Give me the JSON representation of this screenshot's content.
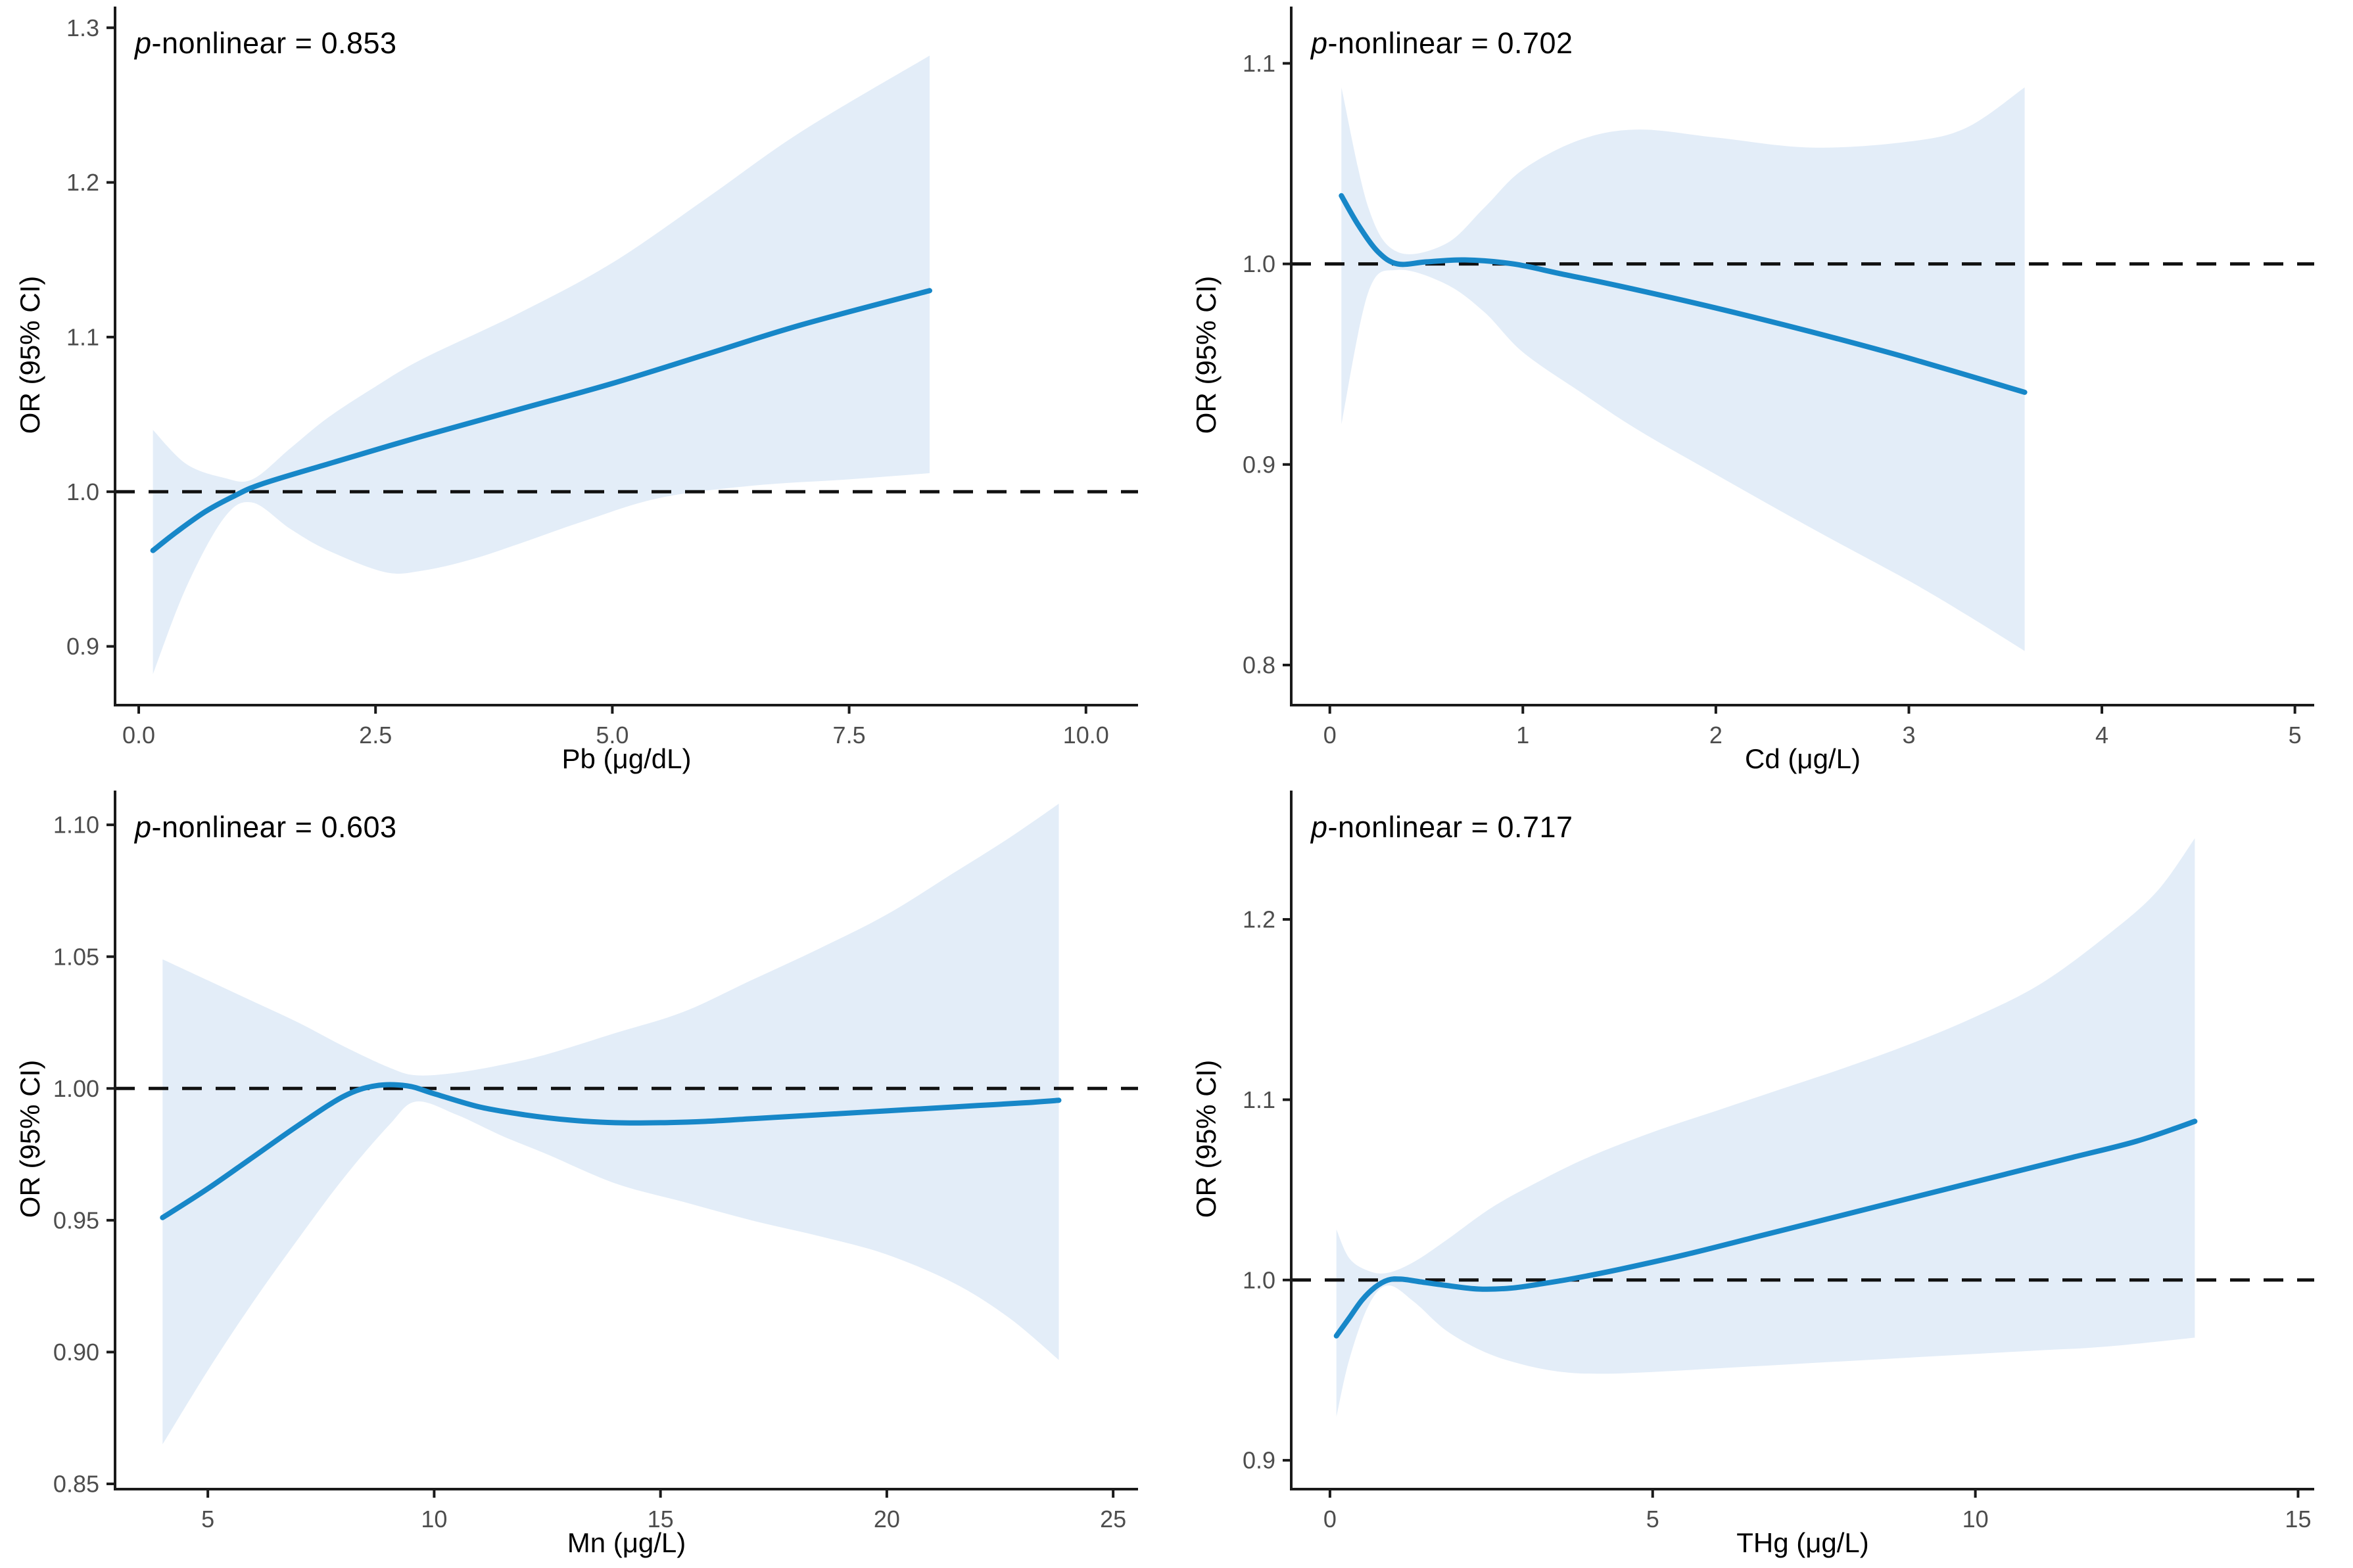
{
  "figure": {
    "background": "#ffffff",
    "colors": {
      "curve": "#1787c8",
      "ci_band": "#e3edf8",
      "ref_line": "#111111",
      "axis": "#1a1a1a",
      "tick_text": "#4d4d4d"
    }
  },
  "chart_data": [
    {
      "id": "pb",
      "type": "line",
      "annotation": {
        "italic": "p",
        "rest": "-nonlinear = 0.853"
      },
      "xlabel": "Pb (μg/dL)",
      "ylabel": "OR (95% CI)",
      "legend": "none",
      "grid": "off",
      "xlim": [
        -0.25,
        10.55
      ],
      "ylim": [
        0.862,
        1.312
      ],
      "ref_y": 1.0,
      "x_tick_values": [
        0,
        2.5,
        5,
        7.5,
        10
      ],
      "x_tick_labels": [
        "0.0",
        "2.5",
        "5.0",
        "7.5",
        "10.0"
      ],
      "y_tick_values": [
        0.9,
        1.0,
        1.1,
        1.2,
        1.3
      ],
      "y_tick_labels": [
        "0.9",
        "1.0",
        "1.1",
        "1.2",
        "1.3"
      ],
      "curve": {
        "x": [
          0.15,
          0.4,
          0.7,
          1.0,
          1.3,
          2,
          3,
          4,
          5,
          6,
          7,
          8.35
        ],
        "y": [
          0.962,
          0.974,
          0.987,
          0.997,
          1.005,
          1.018,
          1.036,
          1.053,
          1.07,
          1.089,
          1.108,
          1.13
        ]
      },
      "ci_upper": {
        "x": [
          0.15,
          0.5,
          0.9,
          1.2,
          1.6,
          2,
          2.5,
          3,
          4,
          5,
          6,
          7,
          8.35
        ],
        "y": [
          1.04,
          1.018,
          1.009,
          1.008,
          1.028,
          1.048,
          1.068,
          1.086,
          1.115,
          1.148,
          1.19,
          1.233,
          1.282
        ]
      },
      "ci_lower": {
        "x": [
          0.15,
          0.5,
          0.9,
          1.2,
          1.6,
          2,
          2.6,
          3,
          3.5,
          4,
          4.7,
          5.5,
          6.5,
          7.5,
          8.35
        ],
        "y": [
          0.882,
          0.938,
          0.983,
          0.993,
          0.976,
          0.962,
          0.948,
          0.949,
          0.956,
          0.966,
          0.981,
          0.996,
          1.004,
          1.008,
          1.012
        ]
      }
    },
    {
      "id": "cd",
      "type": "line",
      "annotation": {
        "italic": "p",
        "rest": "-nonlinear = 0.702"
      },
      "xlabel": "Cd (μg/L)",
      "ylabel": "OR (95% CI)",
      "legend": "none",
      "grid": "off",
      "xlim": [
        -0.2,
        5.1
      ],
      "ylim": [
        0.78,
        1.127
      ],
      "ref_y": 1.0,
      "x_tick_values": [
        0,
        1,
        2,
        3,
        4,
        5
      ],
      "x_tick_labels": [
        "0",
        "1",
        "2",
        "3",
        "4",
        "5"
      ],
      "y_tick_values": [
        0.8,
        0.9,
        1.0,
        1.1
      ],
      "y_tick_labels": [
        "0.8",
        "0.9",
        "1.0",
        "1.1"
      ],
      "curve": {
        "x": [
          0.06,
          0.15,
          0.25,
          0.35,
          0.5,
          0.7,
          0.95,
          1.2,
          1.5,
          2,
          2.5,
          3,
          3.6
        ],
        "y": [
          1.034,
          1.019,
          1.006,
          1.0,
          1.001,
          1.002,
          1.0,
          0.995,
          0.989,
          0.978,
          0.966,
          0.953,
          0.936
        ]
      },
      "ci_upper": {
        "x": [
          0.06,
          0.2,
          0.35,
          0.6,
          0.8,
          1.0,
          1.3,
          1.6,
          2,
          2.5,
          3,
          3.3,
          3.6
        ],
        "y": [
          1.088,
          1.028,
          1.006,
          1.01,
          1.028,
          1.047,
          1.062,
          1.067,
          1.063,
          1.058,
          1.061,
          1.068,
          1.088
        ]
      },
      "ci_lower": {
        "x": [
          0.06,
          0.2,
          0.35,
          0.6,
          0.8,
          1.0,
          1.3,
          1.6,
          2,
          2.5,
          3,
          3.3,
          3.6
        ],
        "y": [
          0.92,
          0.986,
          0.997,
          0.99,
          0.976,
          0.956,
          0.936,
          0.917,
          0.895,
          0.868,
          0.842,
          0.825,
          0.807
        ]
      }
    },
    {
      "id": "mn",
      "type": "line",
      "annotation": {
        "italic": "p",
        "rest": "-nonlinear = 0.603"
      },
      "xlabel": "Mn (μg/L)",
      "ylabel": "OR (95% CI)",
      "legend": "none",
      "grid": "off",
      "xlim": [
        2.95,
        25.55
      ],
      "ylim": [
        0.848,
        1.112
      ],
      "ref_y": 1.0,
      "x_tick_values": [
        5,
        10,
        15,
        20,
        25
      ],
      "x_tick_labels": [
        "5",
        "10",
        "15",
        "20",
        "25"
      ],
      "y_tick_values": [
        0.85,
        0.9,
        0.95,
        1.0,
        1.05,
        1.1
      ],
      "y_tick_labels": [
        "0.85",
        "0.90",
        "0.95",
        "1.00",
        "1.05",
        "1.10"
      ],
      "curve": {
        "x": [
          4,
          5,
          6,
          7,
          8,
          8.7,
          9.4,
          10,
          11,
          12,
          13,
          14,
          15,
          16,
          17,
          18,
          19,
          20,
          21,
          22,
          23,
          23.8
        ],
        "y": [
          0.951,
          0.962,
          0.974,
          0.986,
          0.997,
          1.001,
          1.001,
          0.998,
          0.993,
          0.99,
          0.988,
          0.987,
          0.987,
          0.9875,
          0.9885,
          0.9895,
          0.9905,
          0.9915,
          0.9925,
          0.9935,
          0.9945,
          0.9955
        ]
      },
      "ci_upper": {
        "x": [
          4,
          5,
          6,
          7,
          8,
          9,
          9.6,
          10.5,
          11.5,
          12.5,
          14,
          15.5,
          17,
          18.5,
          20,
          21.5,
          22.7,
          23.8
        ],
        "y": [
          1.049,
          1.041,
          1.033,
          1.025,
          1.016,
          1.008,
          1.005,
          1.006,
          1.009,
          1.013,
          1.021,
          1.029,
          1.041,
          1.053,
          1.066,
          1.082,
          1.095,
          1.108
        ]
      },
      "ci_lower": {
        "x": [
          4,
          5,
          6,
          7,
          8,
          9,
          9.6,
          10.5,
          11.5,
          12.5,
          14,
          15.5,
          17,
          18.5,
          20,
          21.5,
          22.7,
          23.8
        ],
        "y": [
          0.865,
          0.893,
          0.919,
          0.943,
          0.966,
          0.986,
          0.995,
          0.99,
          0.982,
          0.975,
          0.964,
          0.957,
          0.95,
          0.944,
          0.937,
          0.926,
          0.913,
          0.897
        ]
      }
    },
    {
      "id": "thg",
      "type": "line",
      "annotation": {
        "italic": "p",
        "rest": "-nonlinear = 0.717"
      },
      "xlabel": "THg (μg/L)",
      "ylabel": "OR (95% CI)",
      "legend": "none",
      "grid": "off",
      "xlim": [
        -0.6,
        15.25
      ],
      "ylim": [
        0.884,
        1.27
      ],
      "ref_y": 1.0,
      "x_tick_values": [
        0,
        5,
        10,
        15
      ],
      "x_tick_labels": [
        "0",
        "5",
        "10",
        "15"
      ],
      "y_tick_values": [
        0.9,
        1.0,
        1.1,
        1.2
      ],
      "y_tick_labels": [
        "0.9",
        "1.0",
        "1.1",
        "1.2"
      ],
      "curve": {
        "x": [
          0.1,
          0.3,
          0.5,
          0.7,
          0.9,
          1.1,
          1.4,
          1.8,
          2.3,
          2.8,
          3.3,
          3.8,
          4.5,
          5.5,
          6.5,
          7.5,
          8.5,
          9.5,
          10.5,
          11.5,
          12.5,
          13.4
        ],
        "y": [
          0.969,
          0.979,
          0.989,
          0.996,
          1.0,
          1.0005,
          0.999,
          0.997,
          0.995,
          0.9955,
          0.998,
          1.001,
          1.006,
          1.014,
          1.023,
          1.032,
          1.041,
          1.05,
          1.059,
          1.068,
          1.077,
          1.088
        ]
      },
      "ci_upper": {
        "x": [
          0.1,
          0.3,
          0.6,
          0.9,
          1.3,
          1.8,
          2.5,
          3.2,
          4,
          5,
          6,
          7,
          8,
          9,
          10,
          11,
          12,
          12.8,
          13.4
        ],
        "y": [
          1.028,
          1.012,
          1.005,
          1.004,
          1.01,
          1.022,
          1.04,
          1.054,
          1.068,
          1.082,
          1.094,
          1.106,
          1.118,
          1.131,
          1.146,
          1.164,
          1.19,
          1.215,
          1.245
        ]
      },
      "ci_lower": {
        "x": [
          0.1,
          0.3,
          0.6,
          0.9,
          1.3,
          1.8,
          2.4,
          3,
          3.6,
          4.2,
          5,
          6,
          7,
          8,
          9,
          10,
          11,
          12,
          13.4
        ],
        "y": [
          0.924,
          0.956,
          0.986,
          0.997,
          0.988,
          0.972,
          0.96,
          0.953,
          0.949,
          0.948,
          0.949,
          0.951,
          0.953,
          0.955,
          0.957,
          0.959,
          0.961,
          0.963,
          0.968
        ]
      }
    }
  ]
}
